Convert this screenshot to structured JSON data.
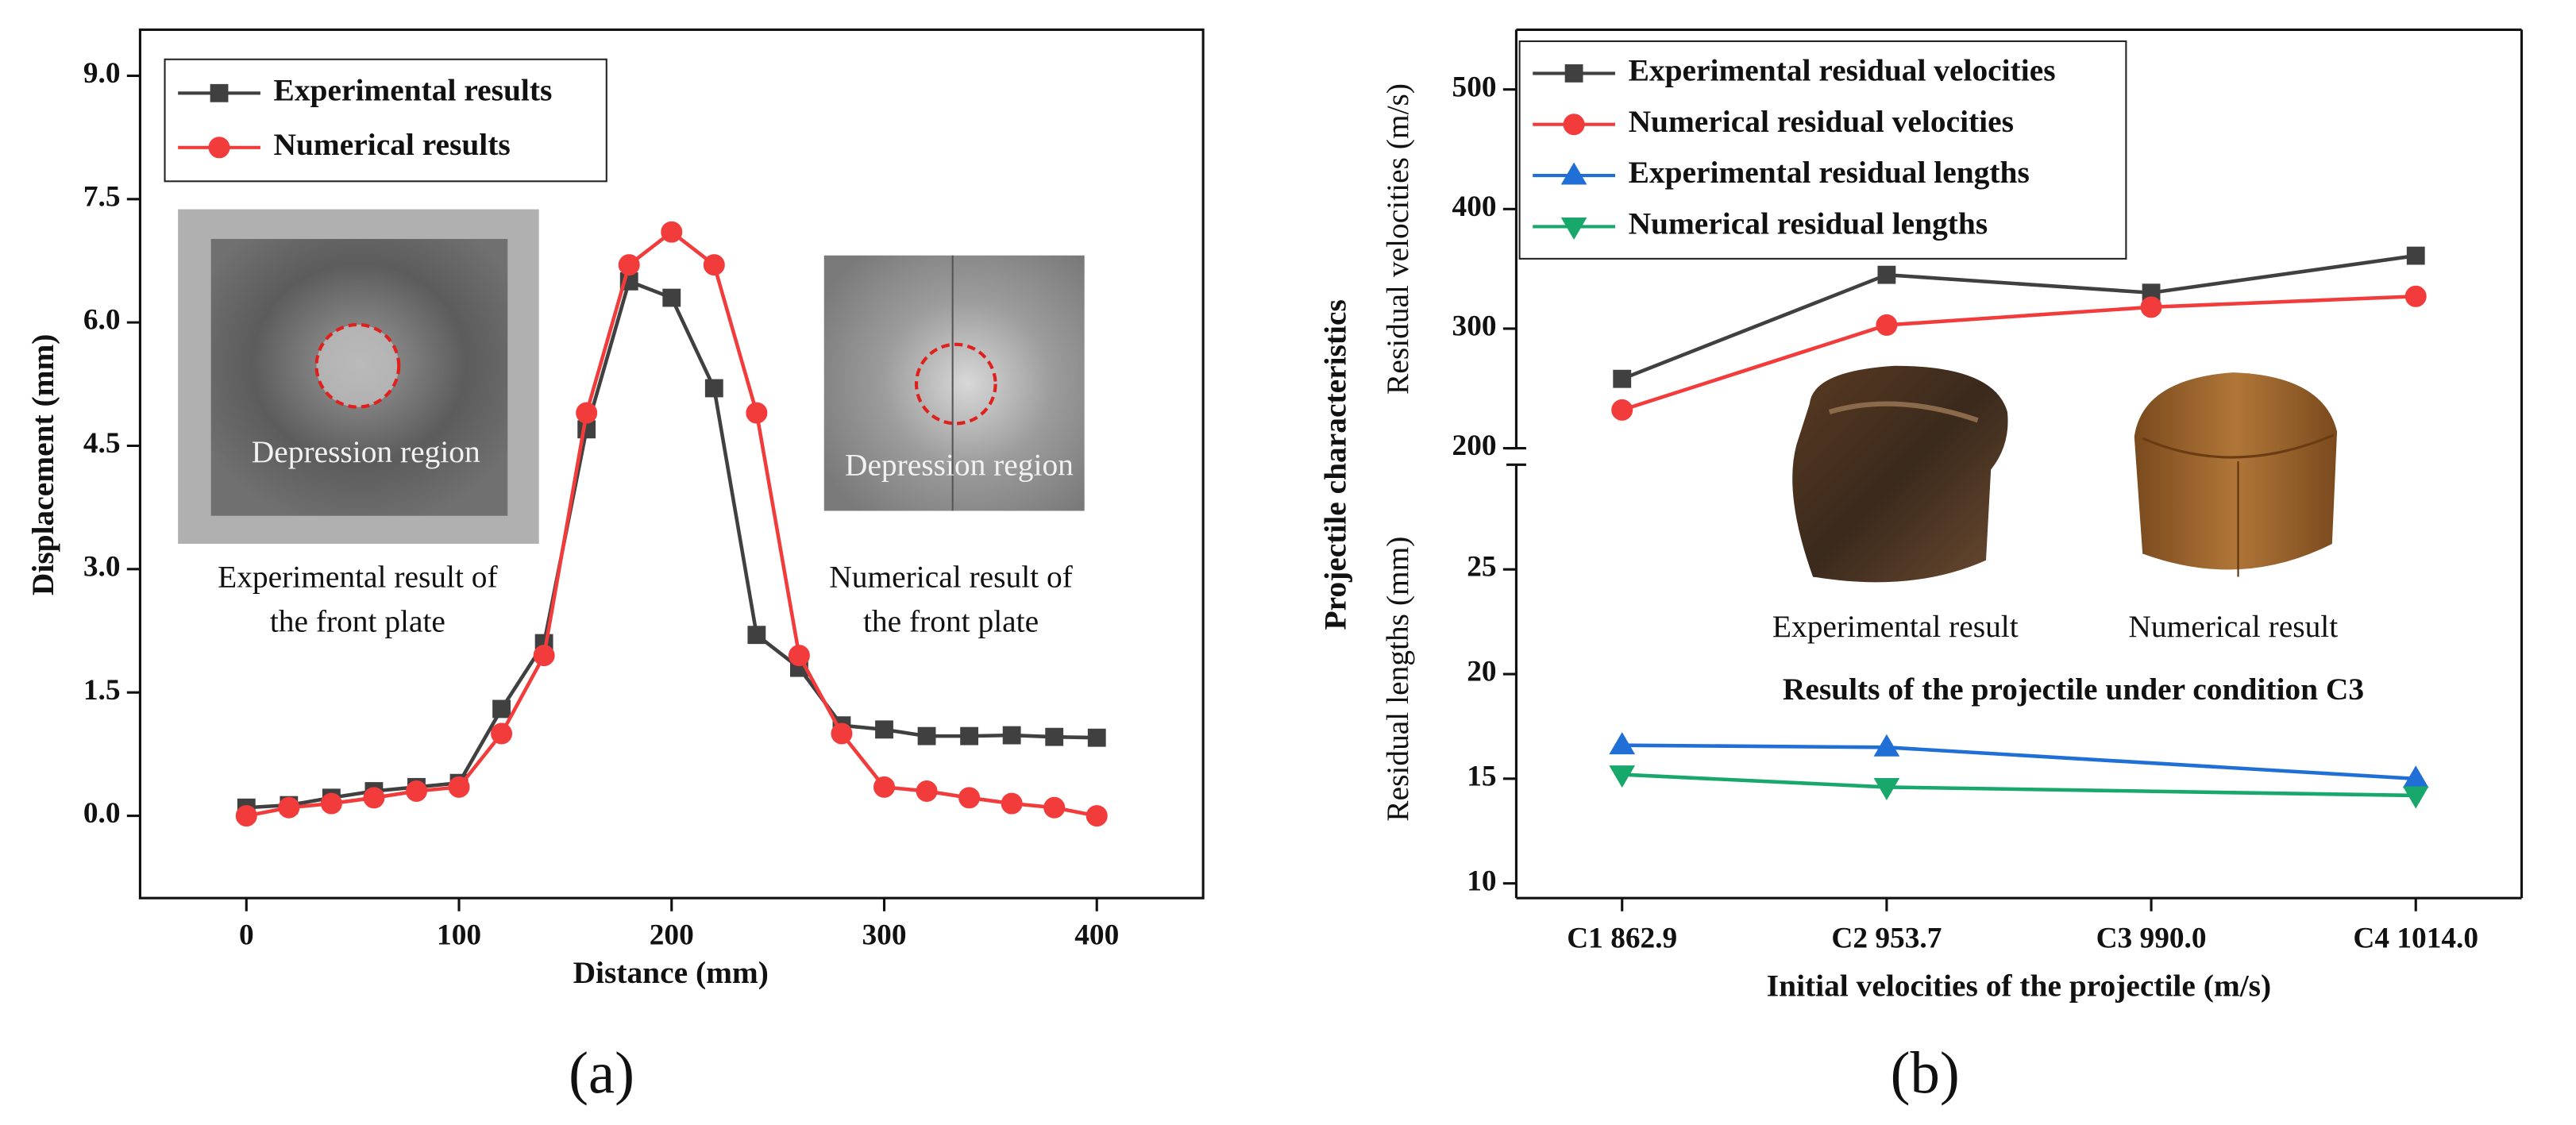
{
  "chart_data": [
    {
      "type": "line",
      "x": [
        0,
        20,
        40,
        60,
        80,
        100,
        120,
        140,
        160,
        180,
        200,
        220,
        240,
        260,
        280,
        300,
        320,
        340,
        360,
        380,
        400
      ],
      "series": [
        {
          "name": "Experimental results",
          "color": "#404040",
          "marker": "square",
          "values": [
            0.1,
            0.13,
            0.22,
            0.3,
            0.35,
            0.4,
            1.3,
            2.1,
            4.7,
            6.5,
            6.3,
            5.2,
            2.2,
            1.8,
            1.1,
            1.05,
            0.97,
            0.97,
            0.98,
            0.96,
            0.95
          ]
        },
        {
          "name": "Numerical results",
          "color": "#f23c3c",
          "marker": "circle",
          "values": [
            0.0,
            0.1,
            0.15,
            0.22,
            0.3,
            0.35,
            1.0,
            1.95,
            4.9,
            6.7,
            7.1,
            6.7,
            4.9,
            1.95,
            1.0,
            0.35,
            0.3,
            0.22,
            0.15,
            0.1,
            0.0
          ]
        }
      ],
      "xlabel": "Distance (mm)",
      "ylabel": "Displacement (mm)",
      "xlim": [
        -50,
        450
      ],
      "xticks": [
        0,
        100,
        200,
        300,
        400
      ],
      "ylim": [
        -1,
        9.56
      ],
      "yticks": [
        {
          "value": 0,
          "label": "0.0"
        },
        1.5,
        {
          "value": 3,
          "label": "3.0"
        },
        4.5,
        {
          "value": 6,
          "label": "6.0"
        },
        7.5,
        {
          "value": 9,
          "label": "9.0"
        }
      ],
      "legend": "upper left",
      "annotations": {
        "experimental_region": "Depression region",
        "numerical_region": "Depression region",
        "experimental_caption": [
          "Experimental result of",
          "the front plate"
        ],
        "numerical_caption": [
          "Numerical result of",
          "the front plate"
        ]
      },
      "panel_label": "(a)"
    },
    {
      "type": "broken_line",
      "categories": [
        "C1 862.9",
        "C2 953.7",
        "C3 990.0",
        "C4 1014.0"
      ],
      "series": [
        {
          "name": "Experimental residual velocities",
          "color": "#404040",
          "marker": "square",
          "axis": "y",
          "values": [
            258,
            345,
            330,
            361
          ]
        },
        {
          "name": "Numerical residual velocities",
          "color": "#f23c3c",
          "marker": "circle",
          "axis": "y",
          "values": [
            232,
            303,
            318,
            327
          ]
        },
        {
          "name": "Experimental residual lengths",
          "color": "#1f6fd6",
          "marker": "triangle-up",
          "axis": "y2",
          "x": [
            "C1 862.9",
            "C2 953.7",
            "C4 1014.0"
          ],
          "values": [
            16.6,
            16.5,
            15.0
          ]
        },
        {
          "name": "Numerical residual lengths",
          "color": "#19a86c",
          "marker": "triangle-down",
          "axis": "y2",
          "x": [
            "C1 862.9",
            "C2 953.7",
            "C4 1014.0"
          ],
          "values": [
            15.2,
            14.6,
            14.2
          ]
        }
      ],
      "xlabel": "Initial velocities of the projectile (m/s)",
      "ylabel": "Residual velocities (m/s)",
      "y2label": "Residual lengths (mm)",
      "ylabel_outer": "Projectile characteristics",
      "ylim": [
        200,
        550
      ],
      "yticks": [
        200,
        300,
        400,
        500
      ],
      "y2lim": [
        9.3,
        30
      ],
      "y2ticks": [
        10,
        15,
        20,
        25
      ],
      "legend": "upper left",
      "annotations": {
        "experimental_caption": "Experimental result",
        "numerical_caption": "Numerical result",
        "inset_title": "Results of the projectile under condition C3"
      },
      "panel_label": "(b)"
    }
  ]
}
